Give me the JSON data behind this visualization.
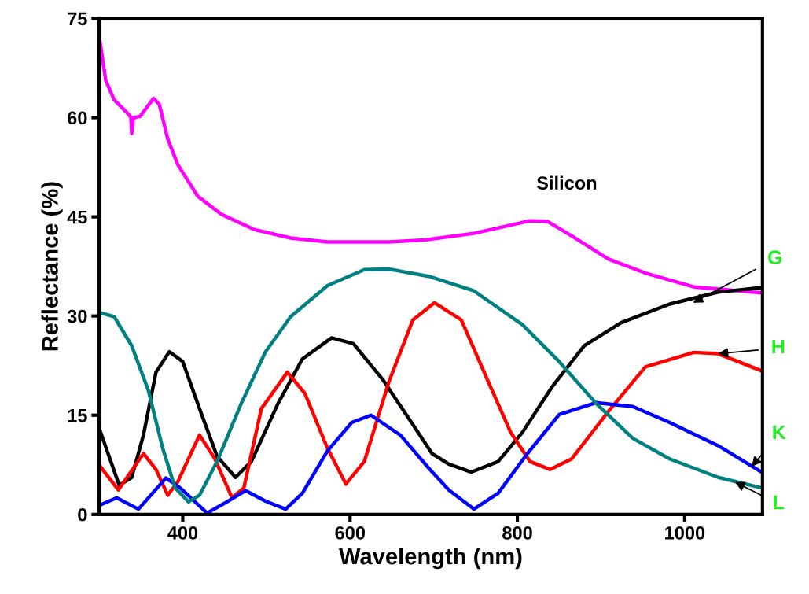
{
  "chart_data": {
    "type": "line",
    "xlabel": "Wavelength (nm)",
    "ylabel": "Reflectance (%)",
    "xlim": [
      300,
      1093
    ],
    "xticks": [
      400,
      600,
      800,
      1000
    ],
    "ylim": [
      0,
      75
    ],
    "yticks": [
      0,
      15,
      30,
      45,
      60,
      75
    ],
    "grid": false,
    "legend": false,
    "series": [
      {
        "color": "#ff00ff",
        "x": [
          301,
          308,
          318,
          336,
          338,
          339,
          341,
          349,
          365,
          372,
          382,
          394,
          418,
          446,
          485,
          529,
          573,
          646,
          689,
          748,
          815,
          836,
          865,
          909,
          953,
          1011,
          1092
        ],
        "values": [
          71.5,
          65.6,
          62.7,
          60.4,
          60.0,
          57.6,
          60.0,
          60.2,
          62.9,
          62.0,
          56.8,
          52.9,
          48.1,
          45.4,
          43.1,
          41.8,
          41.2,
          41.2,
          41.5,
          42.5,
          44.4,
          44.3,
          42.1,
          38.6,
          36.5,
          34.4,
          33.5
        ]
      },
      {
        "color": "#000000",
        "x": [
          301,
          324,
          339,
          353,
          368,
          384,
          400,
          420,
          441,
          463,
          482,
          514,
          543,
          578,
          604,
          639,
          675,
          698,
          718,
          745,
          777,
          806,
          841,
          880,
          924,
          982,
          1040,
          1092
        ],
        "values": [
          12.7,
          4.4,
          5.6,
          12.0,
          21.5,
          24.6,
          23.1,
          16.0,
          8.8,
          5.6,
          8.0,
          16.8,
          23.5,
          26.7,
          25.8,
          20.4,
          13.6,
          9.2,
          7.6,
          6.4,
          8.0,
          12.4,
          19.2,
          25.5,
          29.0,
          31.8,
          33.6,
          34.3
        ]
      },
      {
        "color": "#ff0000",
        "x": [
          301,
          323,
          353,
          368,
          382,
          394,
          420,
          438,
          459,
          473,
          494,
          525,
          546,
          573,
          595,
          617,
          646,
          675,
          701,
          733,
          762,
          792,
          815,
          839,
          865,
          909,
          953,
          1011,
          1040,
          1092
        ],
        "values": [
          7.3,
          3.7,
          9.2,
          6.8,
          2.9,
          4.9,
          12.0,
          8.5,
          2.5,
          4.0,
          16.0,
          21.5,
          18.3,
          10.0,
          4.6,
          8.0,
          19.9,
          29.4,
          32.0,
          29.4,
          21.0,
          12.4,
          8.0,
          6.8,
          8.4,
          15.6,
          22.3,
          24.5,
          24.3,
          21.7
        ]
      },
      {
        "color": "#0000ff",
        "x": [
          301,
          321,
          347,
          380,
          397,
          429,
          450,
          475,
          499,
          523,
          543,
          573,
          602,
          625,
          660,
          694,
          718,
          748,
          777,
          812,
          850,
          894,
          938,
          982,
          1040,
          1092
        ],
        "values": [
          1.4,
          2.5,
          0.8,
          5.5,
          4.0,
          0.2,
          1.7,
          3.6,
          2.0,
          0.8,
          3.2,
          9.6,
          13.9,
          15.0,
          12.0,
          7.0,
          3.7,
          0.8,
          3.2,
          9.2,
          15.1,
          16.9,
          16.3,
          13.9,
          10.4,
          6.4
        ]
      },
      {
        "color": "#008080",
        "x": [
          301,
          318,
          339,
          359,
          376,
          391,
          407,
          420,
          441,
          470,
          499,
          529,
          573,
          617,
          646,
          694,
          748,
          806,
          850,
          894,
          938,
          982,
          1040,
          1092
        ],
        "values": [
          30.5,
          29.9,
          25.5,
          18.7,
          10.0,
          4.0,
          1.9,
          2.9,
          8.0,
          16.8,
          24.6,
          29.9,
          34.6,
          37.0,
          37.1,
          36.0,
          33.8,
          28.7,
          23.1,
          16.8,
          11.5,
          8.4,
          5.6,
          4.0
        ]
      }
    ],
    "annotations": [
      "Silicon",
      {
        "text": "G",
        "x": 1010,
        "y": 32.0
      },
      {
        "text": "H",
        "x": 1040,
        "y": 24.3
      },
      {
        "text": "K",
        "x": 1080,
        "y": 7.2
      },
      {
        "text": "L",
        "x": 1060,
        "y": 4.9
      }
    ]
  }
}
